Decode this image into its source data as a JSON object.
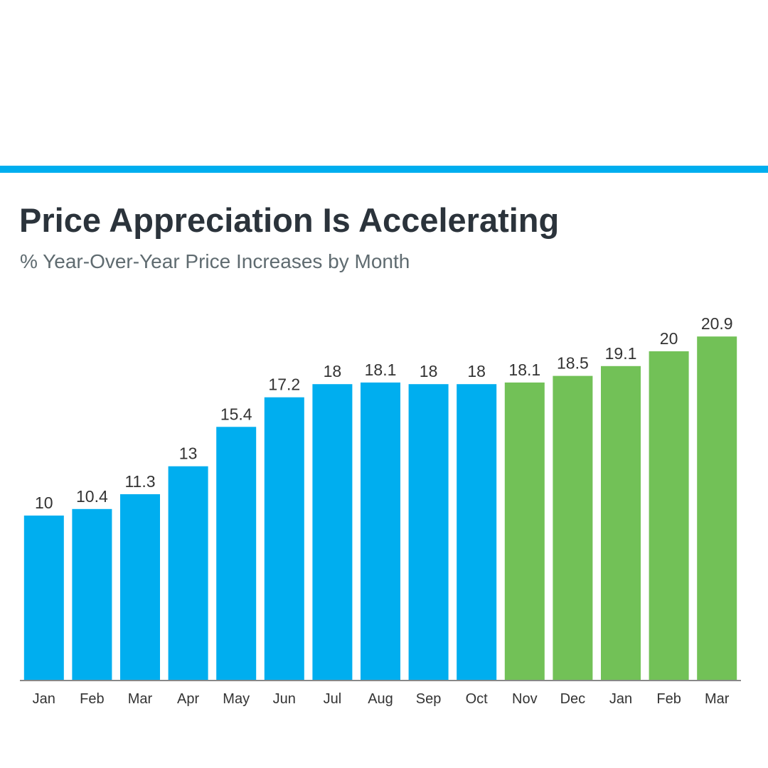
{
  "chart_data": {
    "type": "bar",
    "title": "Price Appreciation Is Accelerating",
    "subtitle": "% Year-Over-Year Price Increases by Month",
    "categories": [
      "Jan",
      "Feb",
      "Mar",
      "Apr",
      "May",
      "Jun",
      "Jul",
      "Aug",
      "Sep",
      "Oct",
      "Nov",
      "Dec",
      "Jan",
      "Feb",
      "Mar"
    ],
    "values": [
      10,
      10.4,
      11.3,
      13,
      15.4,
      17.2,
      18,
      18.1,
      18,
      18,
      18.1,
      18.5,
      19.1,
      20,
      20.9
    ],
    "bar_colors": [
      "#00aeef",
      "#00aeef",
      "#00aeef",
      "#00aeef",
      "#00aeef",
      "#00aeef",
      "#00aeef",
      "#00aeef",
      "#00aeef",
      "#00aeef",
      "#72c157",
      "#72c157",
      "#72c157",
      "#72c157",
      "#72c157"
    ],
    "ylim": [
      0,
      21
    ],
    "grid": false,
    "xlabel": "",
    "ylabel": ""
  },
  "colors": {
    "accent_rule": "#00aeef",
    "title": "#2b333b",
    "subtitle": "#5f6b70",
    "label": "#333333",
    "axis": "#888888"
  }
}
